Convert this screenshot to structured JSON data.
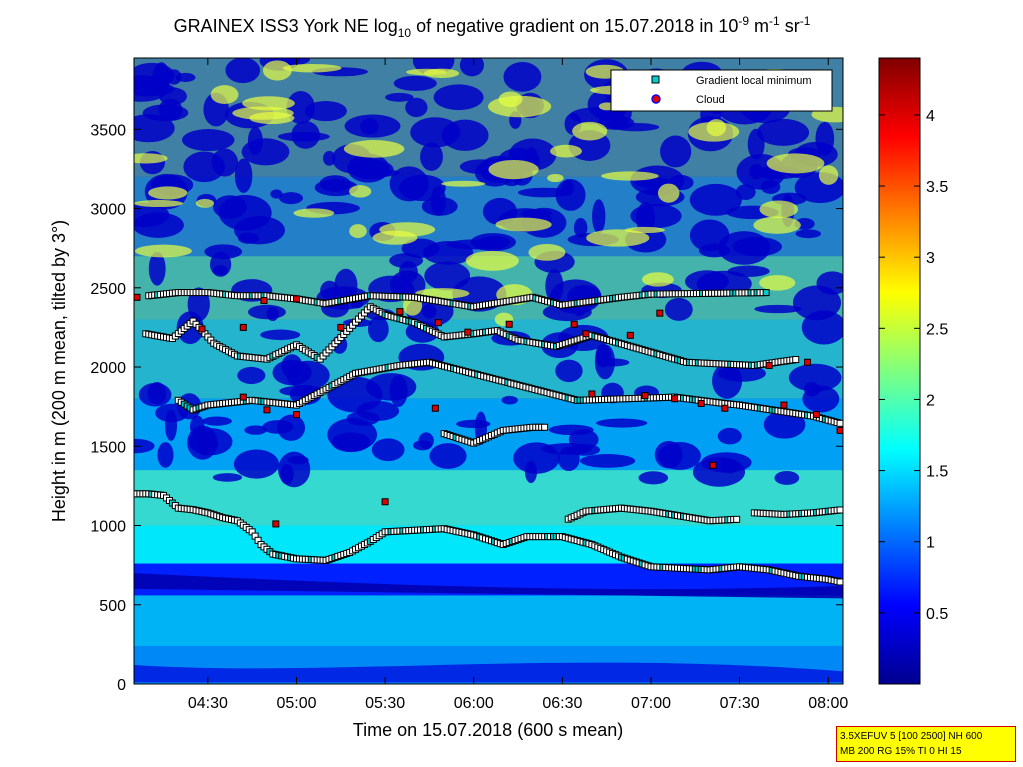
{
  "chart_data": {
    "type": "heatmap",
    "title": {
      "prefix": "GRAINEX ISS3 York NE log",
      "sub": "10",
      "mid": " of negative gradient on 15.07.2018 in 10",
      "exp1": "-9",
      "m": " m",
      "exp2": "-1",
      "sr": " sr",
      "exp3": "-1"
    },
    "xlabel": "Time on 15.07.2018 (600 s mean)",
    "ylabel": "Height in m (200 m mean, tilted by 3°)",
    "x_range_minutes": [
      245,
      485
    ],
    "ylim": [
      0,
      3950
    ],
    "x_ticks": [
      {
        "label": "04:30",
        "min": 270
      },
      {
        "label": "05:00",
        "min": 300
      },
      {
        "label": "05:30",
        "min": 330
      },
      {
        "label": "06:00",
        "min": 360
      },
      {
        "label": "06:30",
        "min": 390
      },
      {
        "label": "07:00",
        "min": 420
      },
      {
        "label": "07:30",
        "min": 450
      },
      {
        "label": "08:00",
        "min": 480
      }
    ],
    "y_ticks": [
      0,
      500,
      1000,
      1500,
      2000,
      2500,
      3000,
      3500
    ],
    "colorbar": {
      "range": [
        0,
        4.4
      ],
      "ticks": [
        "0.5",
        "1",
        "1.5",
        "2",
        "2.5",
        "3",
        "3.5",
        "4"
      ],
      "colormap": "jet"
    },
    "legend": {
      "placement": "top-right",
      "entries": [
        {
          "label": "Gradient local minimum",
          "color": "#00cccc",
          "marker": "square"
        },
        {
          "label": "Cloud",
          "color": "#dd0000",
          "marker": "circle"
        }
      ]
    },
    "series": [
      {
        "name": "Gradient local minimum",
        "layers": [
          {
            "points": [
              [
                245,
                1200
              ],
              [
                250,
                1200
              ],
              [
                255,
                1190
              ],
              [
                260,
                1110
              ],
              [
                265,
                1100
              ],
              [
                270,
                1080
              ],
              [
                275,
                1050
              ],
              [
                280,
                1030
              ],
              [
                285,
                960
              ],
              [
                288,
                880
              ],
              [
                292,
                820
              ],
              [
                300,
                790
              ],
              [
                310,
                780
              ],
              [
                318,
                830
              ],
              [
                325,
                900
              ],
              [
                330,
                960
              ],
              [
                340,
                970
              ],
              [
                350,
                980
              ],
              [
                360,
                940
              ],
              [
                370,
                880
              ],
              [
                378,
                930
              ],
              [
                390,
                930
              ],
              [
                400,
                880
              ],
              [
                410,
                800
              ],
              [
                420,
                740
              ],
              [
                440,
                720
              ],
              [
                450,
                740
              ],
              [
                460,
                720
              ],
              [
                470,
                680
              ],
              [
                480,
                660
              ],
              [
                485,
                640
              ]
            ]
          },
          {
            "points": [
              [
                392,
                1040
              ],
              [
                398,
                1090
              ],
              [
                410,
                1110
              ],
              [
                420,
                1090
              ],
              [
                430,
                1060
              ],
              [
                440,
                1030
              ],
              [
                450,
                1040
              ]
            ]
          },
          {
            "points": [
              [
                455,
                1080
              ],
              [
                465,
                1070
              ],
              [
                475,
                1080
              ],
              [
                485,
                1100
              ]
            ]
          },
          {
            "points": [
              [
                350,
                1580
              ],
              [
                360,
                1520
              ],
              [
                370,
                1600
              ],
              [
                380,
                1620
              ],
              [
                385,
                1620
              ]
            ]
          },
          {
            "points": [
              [
                249,
                2210
              ],
              [
                258,
                2180
              ],
              [
                265,
                2290
              ],
              [
                272,
                2150
              ],
              [
                280,
                2070
              ],
              [
                290,
                2050
              ],
              [
                300,
                2140
              ],
              [
                308,
                2050
              ],
              [
                325,
                2380
              ],
              [
                330,
                2330
              ],
              [
                340,
                2280
              ],
              [
                350,
                2190
              ],
              [
                360,
                2210
              ],
              [
                368,
                2230
              ],
              [
                375,
                2170
              ],
              [
                388,
                2130
              ],
              [
                400,
                2200
              ],
              [
                432,
                2030
              ],
              [
                455,
                2010
              ],
              [
                470,
                2050
              ]
            ]
          },
          {
            "points": [
              [
                250,
                2450
              ],
              [
                260,
                2470
              ],
              [
                270,
                2470
              ],
              [
                280,
                2450
              ],
              [
                290,
                2450
              ],
              [
                300,
                2430
              ],
              [
                310,
                2400
              ],
              [
                325,
                2450
              ],
              [
                340,
                2440
              ],
              [
                350,
                2410
              ],
              [
                360,
                2380
              ],
              [
                380,
                2440
              ],
              [
                390,
                2390
              ],
              [
                410,
                2440
              ],
              [
                420,
                2460
              ],
              [
                460,
                2470
              ]
            ]
          },
          {
            "points": [
              [
                260,
                1790
              ],
              [
                265,
                1730
              ],
              [
                270,
                1760
              ],
              [
                285,
                1790
              ],
              [
                300,
                1760
              ],
              [
                320,
                1960
              ],
              [
                335,
                2010
              ],
              [
                345,
                2030
              ],
              [
                395,
                1790
              ],
              [
                428,
                1810
              ],
              [
                445,
                1770
              ],
              [
                450,
                1760
              ],
              [
                475,
                1690
              ],
              [
                485,
                1640
              ]
            ]
          }
        ]
      },
      {
        "name": "Cloud",
        "points": [
          [
            246,
            2440
          ],
          [
            268,
            2240
          ],
          [
            282,
            2250
          ],
          [
            289,
            2420
          ],
          [
            300,
            2430
          ],
          [
            315,
            2250
          ],
          [
            335,
            2350
          ],
          [
            348,
            2280
          ],
          [
            358,
            2220
          ],
          [
            372,
            2270
          ],
          [
            394,
            2270
          ],
          [
            398,
            2210
          ],
          [
            413,
            2200
          ],
          [
            423,
            2340
          ],
          [
            460,
            2010
          ],
          [
            473,
            2030
          ],
          [
            282,
            1810
          ],
          [
            290,
            1730
          ],
          [
            300,
            1700
          ],
          [
            347,
            1740
          ],
          [
            400,
            1830
          ],
          [
            418,
            1820
          ],
          [
            428,
            1800
          ],
          [
            437,
            1770
          ],
          [
            445,
            1740
          ],
          [
            465,
            1760
          ],
          [
            476,
            1700
          ],
          [
            484,
            1600
          ],
          [
            293,
            1010
          ],
          [
            330,
            1150
          ],
          [
            441,
            1380
          ]
        ]
      }
    ]
  },
  "info": {
    "line1": "3.5XEFUV 5 [100 2500] NH 600",
    "line2": "MB 200 RG 15% TI 0 HI 15"
  }
}
